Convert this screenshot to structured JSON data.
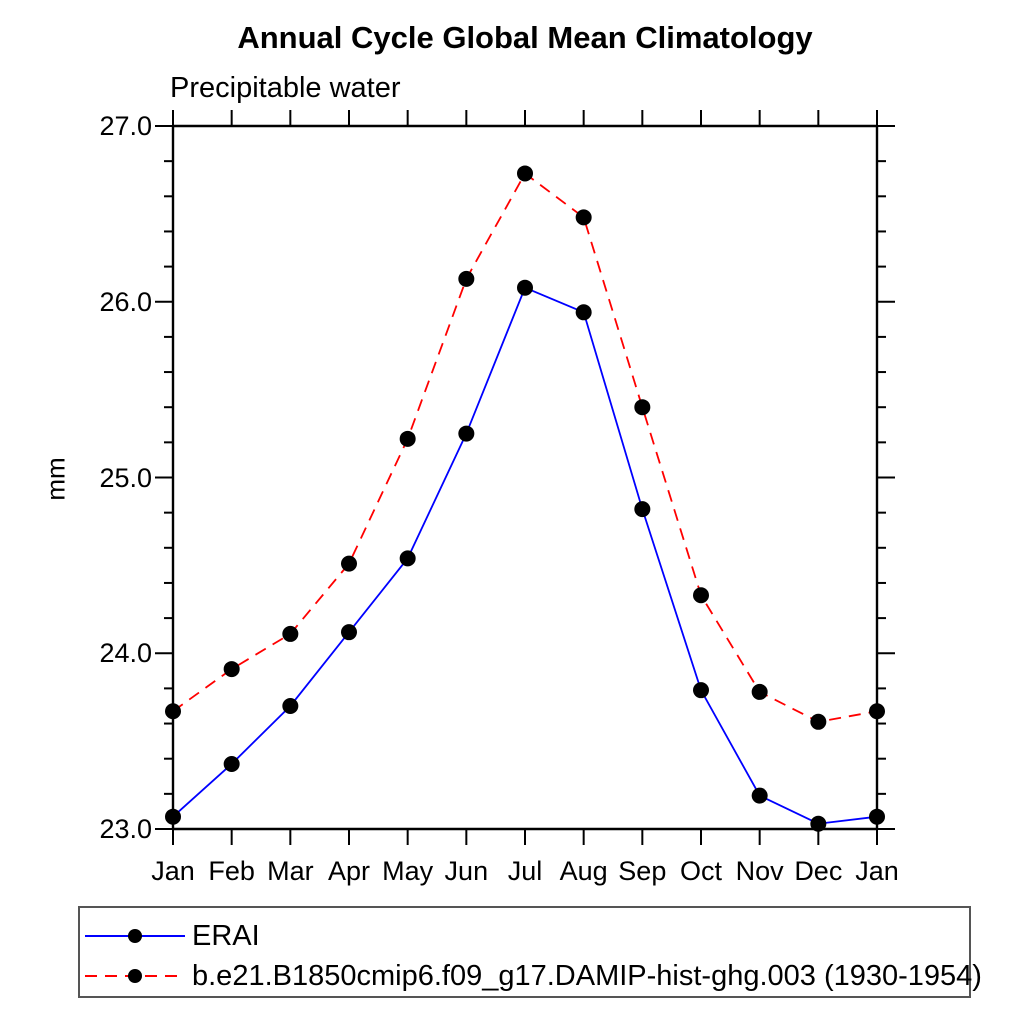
{
  "chart_data": {
    "type": "line",
    "title": "Annual Cycle Global Mean Climatology",
    "subtitle": "Precipitable water",
    "ylabel": "mm",
    "xlabel": "",
    "categories": [
      "Jan",
      "Feb",
      "Mar",
      "Apr",
      "May",
      "Jun",
      "Jul",
      "Aug",
      "Sep",
      "Oct",
      "Nov",
      "Dec",
      "Jan"
    ],
    "ylim": [
      23.0,
      27.0
    ],
    "ytick_major": [
      23.0,
      24.0,
      25.0,
      26.0,
      27.0
    ],
    "ytick_label_format": "one_decimal",
    "ytick_minor_step": 0.2,
    "grid": false,
    "legend_position": "bottom",
    "axis_color": "#000000",
    "marker_shape": "circle",
    "series": [
      {
        "name": "ERAI",
        "color": "#0000ff",
        "style": "solid",
        "marker_color": "#000000",
        "values": [
          23.07,
          23.37,
          23.7,
          24.12,
          24.54,
          25.25,
          26.08,
          25.94,
          24.82,
          23.79,
          23.19,
          23.03,
          23.07
        ]
      },
      {
        "name": "b.e21.B1850cmip6.f09_g17.DAMIP-hist-ghg.003 (1930-1954)",
        "color": "#ff0000",
        "style": "dashed",
        "marker_color": "#000000",
        "values": [
          23.67,
          23.91,
          24.11,
          24.51,
          25.22,
          26.13,
          26.73,
          26.48,
          25.4,
          24.33,
          23.78,
          23.61,
          23.67
        ]
      }
    ]
  }
}
